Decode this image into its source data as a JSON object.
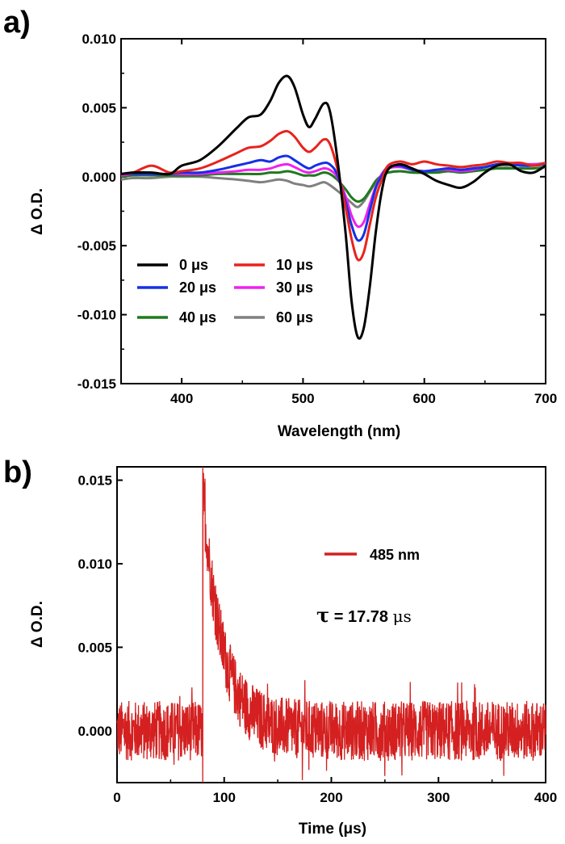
{
  "panels": [
    {
      "label": "a)"
    },
    {
      "label": "b)"
    }
  ],
  "chart_data": [
    {
      "type": "line",
      "xlabel": "Wavelength (nm)",
      "ylabel": "Δ O.D.",
      "xlim": [
        350,
        700
      ],
      "ylim": [
        -0.015,
        0.01
      ],
      "xticks": [
        400,
        500,
        600,
        700
      ],
      "xtick_labels": [
        "400",
        "500",
        "600",
        "700"
      ],
      "yticks": [
        -0.015,
        -0.01,
        -0.005,
        0.0,
        0.005,
        0.01
      ],
      "ytick_labels": [
        "-0.015",
        "-0.010",
        "-0.005",
        "0.000",
        "0.005",
        "0.010"
      ],
      "legend_position": "lower-left",
      "grid": false,
      "x": [
        350,
        360,
        375,
        390,
        400,
        415,
        430,
        445,
        455,
        465,
        473,
        480,
        487,
        493,
        500,
        505,
        510,
        517,
        522,
        528,
        535,
        540,
        545,
        550,
        555,
        560,
        565,
        570,
        580,
        590,
        600,
        610,
        620,
        630,
        640,
        650,
        660,
        670,
        680,
        690,
        700
      ],
      "series": [
        {
          "name": "0 μs",
          "color": "#000000",
          "values": [
            0.0002,
            0.0003,
            0.0003,
            0.0002,
            0.0008,
            0.0012,
            0.0022,
            0.0035,
            0.0043,
            0.0045,
            0.0055,
            0.0068,
            0.0073,
            0.0065,
            0.0045,
            0.0036,
            0.0042,
            0.0053,
            0.0048,
            0.0015,
            -0.004,
            -0.009,
            -0.0116,
            -0.011,
            -0.008,
            -0.004,
            -0.001,
            0.0005,
            0.0009,
            0.0006,
            0.0002,
            -0.0003,
            -0.0006,
            -0.0008,
            -0.0004,
            0.0003,
            0.0008,
            0.0009,
            0.0004,
            0.0003,
            0.0008
          ]
        },
        {
          "name": "10 μs",
          "color": "#e8231c",
          "values": [
            0.0002,
            0.0003,
            0.0008,
            0.0003,
            0.0004,
            0.0006,
            0.0011,
            0.0017,
            0.0021,
            0.0022,
            0.0026,
            0.0031,
            0.0033,
            0.0029,
            0.0021,
            0.0018,
            0.0021,
            0.0027,
            0.0024,
            0.0007,
            -0.0022,
            -0.0045,
            -0.006,
            -0.0055,
            -0.0035,
            -0.0015,
            -0.0002,
            0.0008,
            0.0011,
            0.0009,
            0.0011,
            0.0009,
            0.0008,
            0.0007,
            0.0008,
            0.0009,
            0.0011,
            0.001,
            0.001,
            0.0008,
            0.001
          ]
        },
        {
          "name": "20 μs",
          "color": "#1530e6",
          "values": [
            0.0002,
            0.0002,
            0.0002,
            0.0002,
            0.0003,
            0.0003,
            0.0005,
            0.0008,
            0.001,
            0.0012,
            0.0011,
            0.0014,
            0.0015,
            0.0012,
            0.0008,
            0.0006,
            0.0008,
            0.001,
            0.0009,
            0.0002,
            -0.0018,
            -0.0035,
            -0.0046,
            -0.0042,
            -0.0025,
            -0.0008,
            0.0001,
            0.0007,
            0.0008,
            0.0005,
            0.0004,
            0.0005,
            0.0006,
            0.0005,
            0.0006,
            0.0007,
            0.0009,
            0.0009,
            0.0008,
            0.0008,
            0.0009
          ]
        },
        {
          "name": "30 μs",
          "color": "#ee22ee",
          "values": [
            0.0001,
            0.0002,
            0.0002,
            0.0002,
            0.0002,
            0.0002,
            0.0003,
            0.0004,
            0.0005,
            0.0005,
            0.0006,
            0.0008,
            0.0009,
            0.0007,
            0.0004,
            0.0003,
            0.0004,
            0.0006,
            0.0005,
            0.0,
            -0.0014,
            -0.0028,
            -0.0036,
            -0.0033,
            -0.002,
            -0.0007,
            0.0002,
            0.0006,
            0.0007,
            0.0005,
            0.0004,
            0.0005,
            0.0005,
            0.0004,
            0.0005,
            0.0007,
            0.0009,
            0.0009,
            0.0009,
            0.0009,
            0.0009
          ]
        },
        {
          "name": "40 μs",
          "color": "#1e7a1e",
          "values": [
            0.0,
            0.0001,
            0.0001,
            0.0001,
            0.0001,
            0.0001,
            0.0002,
            0.0002,
            0.0002,
            0.0002,
            0.0003,
            0.0003,
            0.0004,
            0.0003,
            0.0001,
            0.0001,
            0.0001,
            0.0003,
            0.0002,
            -0.0002,
            -0.0009,
            -0.0015,
            -0.0018,
            -0.0016,
            -0.001,
            -0.0003,
            0.0001,
            0.0003,
            0.0004,
            0.0003,
            0.0003,
            0.0003,
            0.0004,
            0.0003,
            0.0004,
            0.0005,
            0.0006,
            0.0006,
            0.0006,
            0.0006,
            0.0007
          ]
        },
        {
          "name": "60 μs",
          "color": "#808080",
          "values": [
            -0.0002,
            -0.0001,
            -0.0001,
            0.0,
            0.0,
            0.0,
            -0.0001,
            -0.0002,
            -0.0003,
            -0.0004,
            -0.0003,
            -0.0002,
            -0.0003,
            -0.0005,
            -0.0006,
            -0.0007,
            -0.0006,
            -0.0004,
            -0.0006,
            -0.001,
            -0.0015,
            -0.0019,
            -0.0022,
            -0.0018,
            -0.0011,
            -0.0004,
            0.0001,
            0.0003,
            0.0004,
            0.0003,
            0.0003,
            0.0004,
            0.0005,
            0.0004,
            0.0006,
            0.0007,
            0.0008,
            0.0008,
            0.0009,
            0.0009,
            0.001
          ]
        }
      ]
    },
    {
      "type": "line",
      "xlabel": "Time (μs)",
      "ylabel": "Δ O.D.",
      "xlim": [
        0,
        400
      ],
      "ylim": [
        -0.0031,
        0.0158
      ],
      "xticks": [
        0,
        100,
        200,
        300,
        400
      ],
      "xtick_labels": [
        "0",
        "100",
        "200",
        "300",
        "400"
      ],
      "yticks": [
        0.0,
        0.005,
        0.01,
        0.015
      ],
      "ytick_labels": [
        "0.000",
        "0.005",
        "0.010",
        "0.015"
      ],
      "grid": false,
      "legend_position": "top-right",
      "series": [
        {
          "name": "485 nm",
          "color": "#d42020",
          "description": "noisy decay trace: baseline ~0 before 80 μs, sharp rise to ~0.0143 at ~80 μs, exponential decay to ~0 by ~170 μs, noise ±0.002"
        }
      ],
      "trace": {
        "t_start": 80,
        "peak": 0.0143,
        "tau": 17.78,
        "noise": 0.0018
      },
      "annotation": {
        "tau_symbol": "τ",
        "tau_text": " = 17.78 ",
        "tau_unit": "μs"
      }
    }
  ]
}
